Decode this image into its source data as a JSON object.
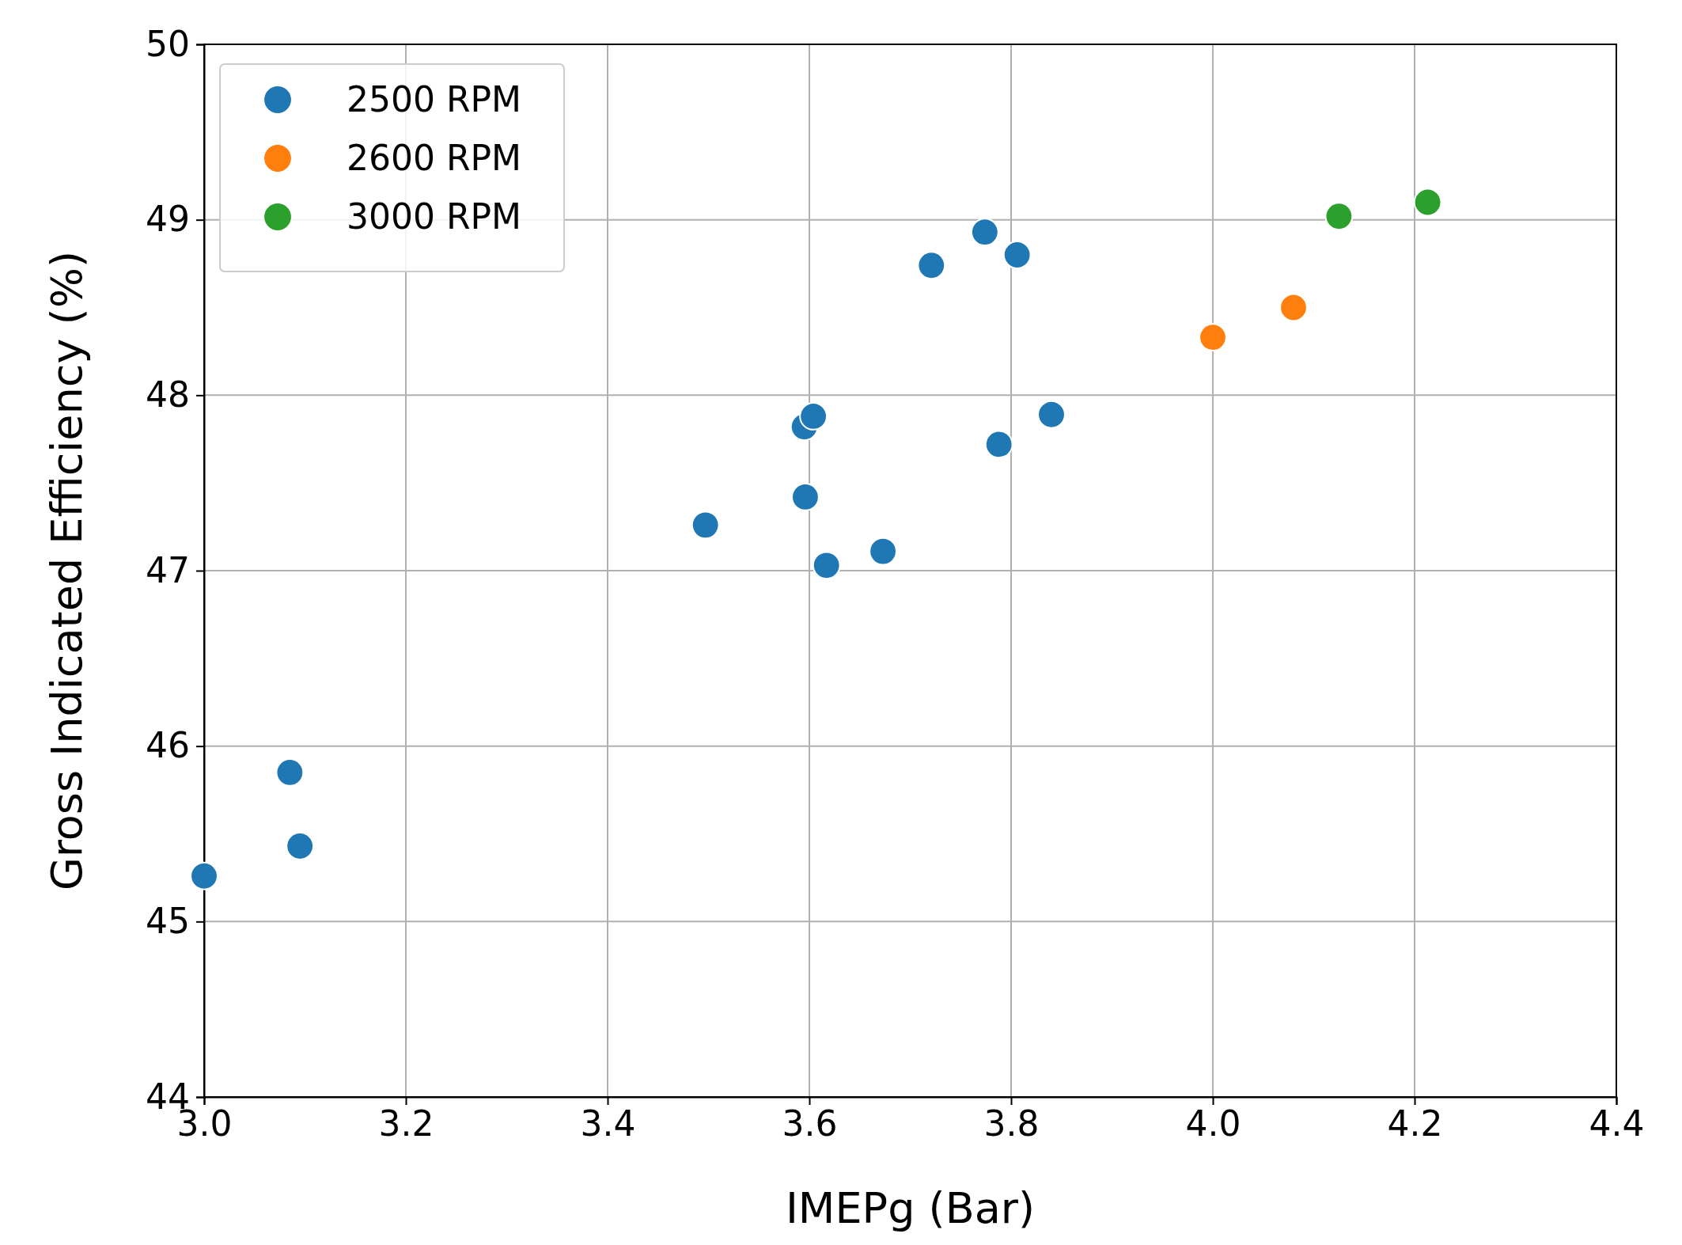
{
  "chart_data": {
    "type": "scatter",
    "xlabel": "IMEPg (Bar)",
    "ylabel": "Gross Indicated Efficiency (%)",
    "xlim": [
      3.0,
      4.4
    ],
    "xticks": [
      {
        "value": 3.0,
        "label": "3.0"
      },
      {
        "value": 3.2,
        "label": "3.2"
      },
      {
        "value": 3.4,
        "label": "3.4"
      },
      {
        "value": 3.6,
        "label": "3.6"
      },
      {
        "value": 3.8,
        "label": "3.8"
      },
      {
        "value": 4.0,
        "label": "4.0"
      },
      {
        "value": 4.2,
        "label": "4.2"
      },
      {
        "value": 4.4,
        "label": "4.4"
      }
    ],
    "ylim": [
      44,
      50
    ],
    "yticks": [
      44,
      45,
      46,
      47,
      48,
      49,
      50
    ],
    "grid": true,
    "legend": "top left",
    "marker": "circle",
    "series": [
      {
        "name": "2500 RPM",
        "color": "#1f77b4",
        "x": [
          3.0,
          3.085,
          3.095,
          3.497,
          3.596,
          3.595,
          3.604,
          3.617,
          3.673,
          3.721,
          3.774,
          3.806,
          3.788,
          3.84
        ],
        "values": [
          45.26,
          45.85,
          45.43,
          47.26,
          47.42,
          47.82,
          47.88,
          47.03,
          47.11,
          48.74,
          48.93,
          48.8,
          47.72,
          47.89
        ]
      },
      {
        "name": "2600 RPM",
        "color": "#ff7f0e",
        "x": [
          4.0,
          4.08
        ],
        "values": [
          48.33,
          48.5
        ]
      },
      {
        "name": "3000 RPM",
        "color": "#2ca02c",
        "x": [
          4.125,
          4.213
        ],
        "values": [
          49.02,
          49.1
        ]
      }
    ]
  }
}
